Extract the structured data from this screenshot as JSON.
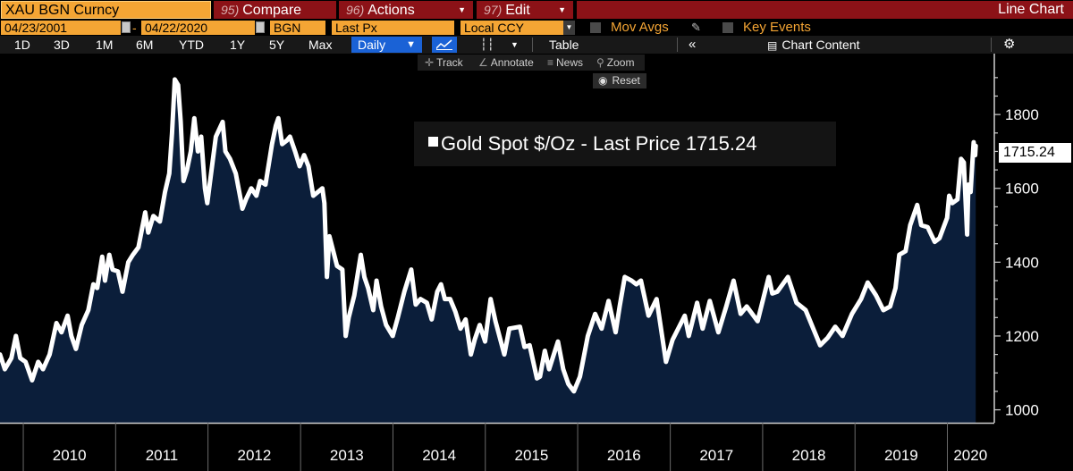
{
  "toolbar": {
    "security": "XAU BGN Curncy",
    "compare": {
      "key": "95)",
      "label": "Compare"
    },
    "actions": {
      "key": "96)",
      "label": "Actions"
    },
    "edit": {
      "key": "97)",
      "label": "Edit"
    },
    "view_title": "Line Chart"
  },
  "fields": {
    "start_date": "04/23/2001",
    "end_date": "04/22/2020",
    "source": "BGN",
    "price_field": "Last Px",
    "currency": "Local CCY",
    "mov_avgs": "Mov Avgs",
    "key_events": "Key Events"
  },
  "periods": [
    "1D",
    "3D",
    "1M",
    "6M",
    "YTD",
    "1Y",
    "5Y",
    "Max"
  ],
  "frequency": "Daily",
  "table_label": "Table",
  "chart_content_label": "Chart Content",
  "tools": {
    "track": "Track",
    "annotate": "Annotate",
    "news": "News",
    "zoom": "Zoom",
    "reset": "Reset"
  },
  "icons": {
    "calendar": "calendar-icon",
    "dropdown": "chevron-down-icon",
    "pencil": "pencil-icon",
    "line_chart": "line-chart-icon",
    "candles": "bar-chart-icon",
    "collapse": "double-chevron-left-icon",
    "chart_content": "chart-content-icon",
    "settings": "gear-icon",
    "track": "crosshair-icon",
    "annotate": "annotate-icon",
    "news": "news-icon",
    "zoom": "magnifier-icon",
    "reset": "reset-icon"
  },
  "colors": {
    "amber": "#f4a534",
    "function_red": "#8c1217",
    "selected_blue": "#1a62d6",
    "area_fill": "#0b1e3a",
    "line": "#ffffff"
  },
  "chart_data": {
    "type": "area",
    "title": "",
    "legend": [
      {
        "name": "Gold Spot $/Oz - Last Price",
        "value": "1715.24"
      }
    ],
    "last_price_label": "1715.24",
    "xlabel": "",
    "ylabel": "",
    "x_ticks": [
      "2010",
      "2011",
      "2012",
      "2013",
      "2014",
      "2015",
      "2016",
      "2017",
      "2018",
      "2019",
      "2020"
    ],
    "y_ticks": [
      1000,
      1200,
      1400,
      1600,
      1800
    ],
    "ylim": [
      965,
      1965
    ],
    "xlim": [
      "2009-10-01",
      "2020-07-01"
    ],
    "legend_position": "top-center",
    "grid": false,
    "series": [
      {
        "name": "Gold Spot $/Oz - Last Price",
        "points": [
          [
            "2009-10-01",
            1150
          ],
          [
            "2009-10-20",
            1110
          ],
          [
            "2009-11-15",
            1140
          ],
          [
            "2009-12-03",
            1200
          ],
          [
            "2009-12-20",
            1140
          ],
          [
            "2010-01-10",
            1130
          ],
          [
            "2010-02-05",
            1080
          ],
          [
            "2010-03-01",
            1130
          ],
          [
            "2010-03-20",
            1110
          ],
          [
            "2010-04-15",
            1150
          ],
          [
            "2010-05-12",
            1235
          ],
          [
            "2010-06-01",
            1210
          ],
          [
            "2010-06-25",
            1255
          ],
          [
            "2010-07-10",
            1200
          ],
          [
            "2010-07-28",
            1165
          ],
          [
            "2010-08-20",
            1230
          ],
          [
            "2010-09-15",
            1270
          ],
          [
            "2010-10-05",
            1340
          ],
          [
            "2010-10-20",
            1330
          ],
          [
            "2010-11-09",
            1415
          ],
          [
            "2010-11-20",
            1350
          ],
          [
            "2010-12-07",
            1420
          ],
          [
            "2010-12-20",
            1380
          ],
          [
            "2011-01-10",
            1375
          ],
          [
            "2011-01-28",
            1320
          ],
          [
            "2011-02-20",
            1400
          ],
          [
            "2011-03-10",
            1420
          ],
          [
            "2011-04-01",
            1440
          ],
          [
            "2011-04-28",
            1535
          ],
          [
            "2011-05-10",
            1480
          ],
          [
            "2011-05-30",
            1525
          ],
          [
            "2011-06-25",
            1510
          ],
          [
            "2011-07-15",
            1590
          ],
          [
            "2011-08-01",
            1640
          ],
          [
            "2011-08-12",
            1750
          ],
          [
            "2011-08-23",
            1895
          ],
          [
            "2011-09-05",
            1880
          ],
          [
            "2011-09-15",
            1780
          ],
          [
            "2011-09-26",
            1620
          ],
          [
            "2011-10-10",
            1650
          ],
          [
            "2011-10-25",
            1700
          ],
          [
            "2011-11-08",
            1790
          ],
          [
            "2011-11-22",
            1700
          ],
          [
            "2011-12-05",
            1740
          ],
          [
            "2011-12-20",
            1600
          ],
          [
            "2011-12-29",
            1560
          ],
          [
            "2012-01-15",
            1650
          ],
          [
            "2012-02-01",
            1740
          ],
          [
            "2012-02-28",
            1780
          ],
          [
            "2012-03-10",
            1700
          ],
          [
            "2012-03-28",
            1680
          ],
          [
            "2012-04-20",
            1640
          ],
          [
            "2012-05-16",
            1545
          ],
          [
            "2012-05-30",
            1570
          ],
          [
            "2012-06-20",
            1600
          ],
          [
            "2012-07-10",
            1580
          ],
          [
            "2012-07-25",
            1620
          ],
          [
            "2012-08-15",
            1610
          ],
          [
            "2012-09-10",
            1720
          ],
          [
            "2012-09-25",
            1770
          ],
          [
            "2012-10-05",
            1790
          ],
          [
            "2012-10-20",
            1720
          ],
          [
            "2012-11-08",
            1730
          ],
          [
            "2012-11-20",
            1740
          ],
          [
            "2012-12-10",
            1700
          ],
          [
            "2012-12-28",
            1660
          ],
          [
            "2013-01-15",
            1690
          ],
          [
            "2013-02-01",
            1660
          ],
          [
            "2013-02-20",
            1580
          ],
          [
            "2013-03-10",
            1590
          ],
          [
            "2013-03-28",
            1600
          ],
          [
            "2013-04-05",
            1560
          ],
          [
            "2013-04-15",
            1360
          ],
          [
            "2013-04-25",
            1470
          ],
          [
            "2013-05-10",
            1430
          ],
          [
            "2013-05-25",
            1390
          ],
          [
            "2013-06-15",
            1380
          ],
          [
            "2013-06-28",
            1200
          ],
          [
            "2013-07-10",
            1250
          ],
          [
            "2013-08-01",
            1310
          ],
          [
            "2013-08-27",
            1420
          ],
          [
            "2013-09-10",
            1360
          ],
          [
            "2013-09-25",
            1330
          ],
          [
            "2013-10-15",
            1270
          ],
          [
            "2013-10-28",
            1350
          ],
          [
            "2013-11-15",
            1280
          ],
          [
            "2013-12-05",
            1230
          ],
          [
            "2013-12-31",
            1200
          ],
          [
            "2014-01-20",
            1250
          ],
          [
            "2014-02-15",
            1320
          ],
          [
            "2014-03-14",
            1380
          ],
          [
            "2014-04-01",
            1285
          ],
          [
            "2014-04-20",
            1300
          ],
          [
            "2014-05-15",
            1290
          ],
          [
            "2014-06-03",
            1245
          ],
          [
            "2014-06-25",
            1320
          ],
          [
            "2014-07-10",
            1340
          ],
          [
            "2014-07-25",
            1300
          ],
          [
            "2014-08-15",
            1300
          ],
          [
            "2014-09-05",
            1265
          ],
          [
            "2014-09-25",
            1220
          ],
          [
            "2014-10-15",
            1245
          ],
          [
            "2014-11-05",
            1150
          ],
          [
            "2014-11-20",
            1190
          ],
          [
            "2014-12-10",
            1230
          ],
          [
            "2014-12-31",
            1185
          ],
          [
            "2015-01-22",
            1300
          ],
          [
            "2015-02-10",
            1240
          ],
          [
            "2015-03-17",
            1150
          ],
          [
            "2015-04-06",
            1220
          ],
          [
            "2015-05-18",
            1225
          ],
          [
            "2015-06-05",
            1170
          ],
          [
            "2015-06-25",
            1175
          ],
          [
            "2015-07-24",
            1085
          ],
          [
            "2015-08-05",
            1090
          ],
          [
            "2015-08-24",
            1160
          ],
          [
            "2015-09-10",
            1110
          ],
          [
            "2015-10-15",
            1185
          ],
          [
            "2015-11-05",
            1110
          ],
          [
            "2015-11-25",
            1070
          ],
          [
            "2015-12-17",
            1050
          ],
          [
            "2016-01-10",
            1090
          ],
          [
            "2016-02-10",
            1200
          ],
          [
            "2016-03-10",
            1260
          ],
          [
            "2016-04-05",
            1220
          ],
          [
            "2016-05-02",
            1295
          ],
          [
            "2016-05-30",
            1210
          ],
          [
            "2016-06-15",
            1280
          ],
          [
            "2016-07-05",
            1360
          ],
          [
            "2016-08-01",
            1350
          ],
          [
            "2016-08-20",
            1340
          ],
          [
            "2016-09-07",
            1350
          ],
          [
            "2016-10-07",
            1255
          ],
          [
            "2016-11-08",
            1300
          ],
          [
            "2016-12-15",
            1130
          ],
          [
            "2017-01-10",
            1190
          ],
          [
            "2017-02-27",
            1255
          ],
          [
            "2017-03-15",
            1200
          ],
          [
            "2017-04-17",
            1290
          ],
          [
            "2017-05-09",
            1220
          ],
          [
            "2017-06-06",
            1295
          ],
          [
            "2017-07-10",
            1210
          ],
          [
            "2017-08-10",
            1280
          ],
          [
            "2017-09-08",
            1350
          ],
          [
            "2017-10-06",
            1260
          ],
          [
            "2017-10-30",
            1280
          ],
          [
            "2017-12-12",
            1240
          ],
          [
            "2018-01-25",
            1360
          ],
          [
            "2018-02-08",
            1315
          ],
          [
            "2018-02-28",
            1320
          ],
          [
            "2018-04-11",
            1360
          ],
          [
            "2018-05-15",
            1290
          ],
          [
            "2018-06-20",
            1270
          ],
          [
            "2018-07-20",
            1220
          ],
          [
            "2018-08-16",
            1175
          ],
          [
            "2018-09-15",
            1195
          ],
          [
            "2018-10-15",
            1225
          ],
          [
            "2018-11-13",
            1200
          ],
          [
            "2018-12-20",
            1260
          ],
          [
            "2019-01-25",
            1300
          ],
          [
            "2019-02-20",
            1345
          ],
          [
            "2019-03-25",
            1310
          ],
          [
            "2019-04-23",
            1270
          ],
          [
            "2019-05-20",
            1280
          ],
          [
            "2019-06-10",
            1330
          ],
          [
            "2019-06-25",
            1420
          ],
          [
            "2019-07-20",
            1430
          ],
          [
            "2019-08-07",
            1500
          ],
          [
            "2019-09-04",
            1555
          ],
          [
            "2019-09-20",
            1500
          ],
          [
            "2019-10-15",
            1495
          ],
          [
            "2019-11-12",
            1455
          ],
          [
            "2019-12-01",
            1465
          ],
          [
            "2019-12-31",
            1520
          ],
          [
            "2020-01-08",
            1580
          ],
          [
            "2020-01-20",
            1560
          ],
          [
            "2020-02-10",
            1570
          ],
          [
            "2020-02-24",
            1680
          ],
          [
            "2020-03-06",
            1670
          ],
          [
            "2020-03-19",
            1475
          ],
          [
            "2020-03-24",
            1610
          ],
          [
            "2020-04-02",
            1590
          ],
          [
            "2020-04-08",
            1660
          ],
          [
            "2020-04-14",
            1725
          ],
          [
            "2020-04-20",
            1690
          ],
          [
            "2020-04-22",
            1715.24
          ]
        ]
      }
    ]
  }
}
